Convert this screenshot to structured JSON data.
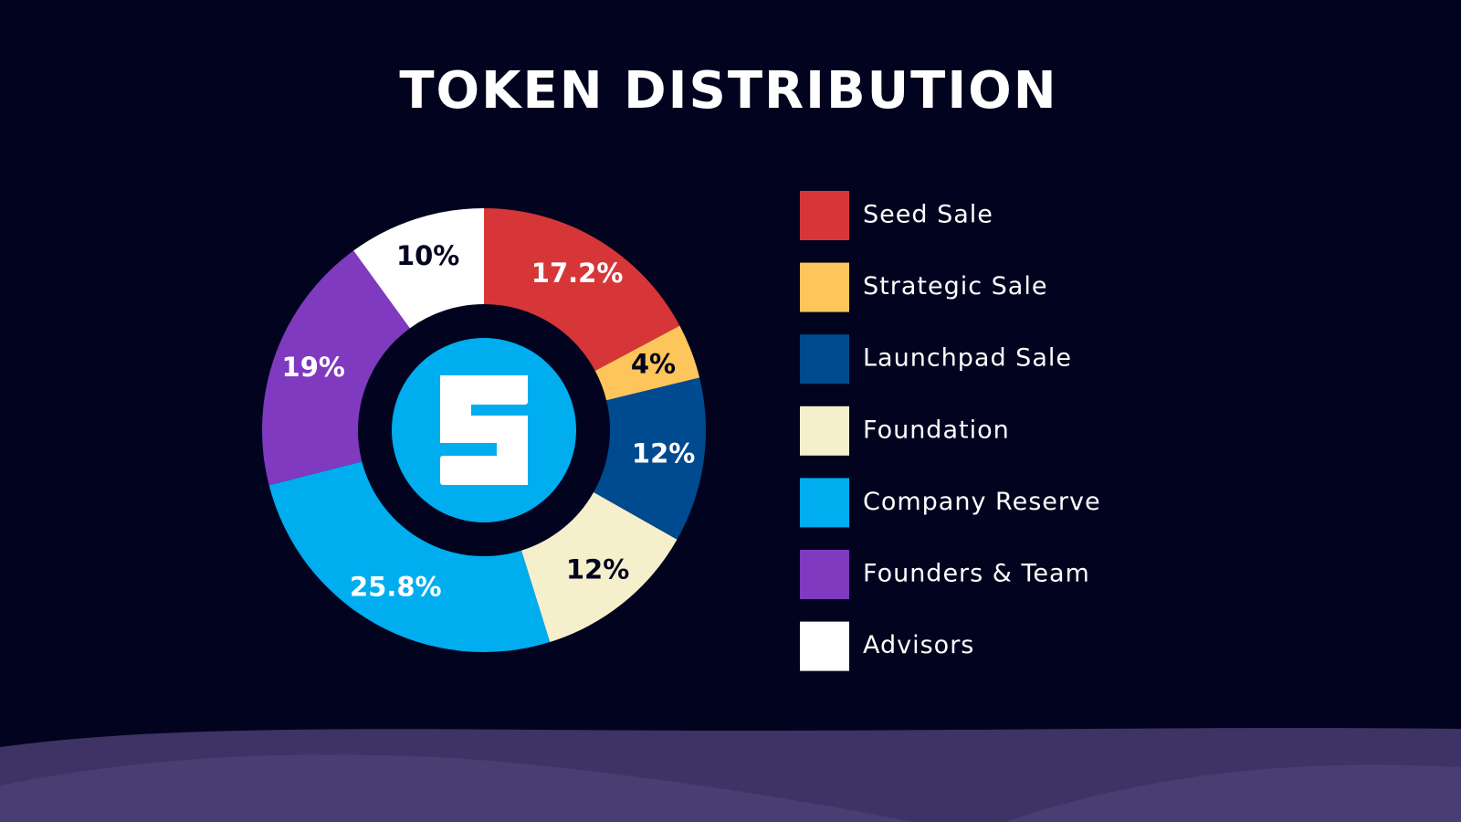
{
  "chart_data": {
    "type": "donut",
    "title": "TOKEN DISTRIBUTION",
    "categories": [
      "Seed Sale",
      "Strategic Sale",
      "Launchpad Sale",
      "Foundation",
      "Company Reserve",
      "Founders & Team",
      "Advisors"
    ],
    "values": [
      17.2,
      4,
      12,
      12,
      25.8,
      19,
      10
    ],
    "value_labels": [
      "17.2%",
      "4%",
      "12%",
      "12%",
      "25.8%",
      "19%",
      "10%"
    ],
    "colors": [
      "#d63638",
      "#fdc55a",
      "#004a8f",
      "#f5efcc",
      "#00adef",
      "#7f3ac0",
      "#ffffff"
    ],
    "legend": "right"
  }
}
